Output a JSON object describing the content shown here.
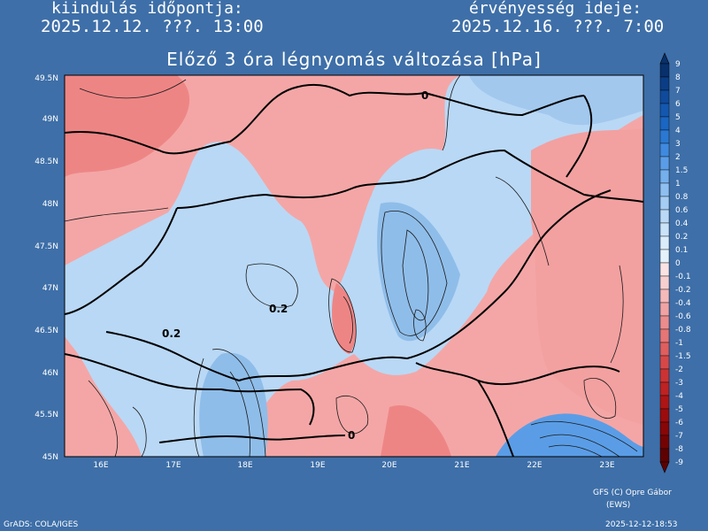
{
  "header": {
    "start_label": "kiindulás időpontja:",
    "start_value": "2025.12.12. ???. 13:00",
    "valid_label": "érvényesség ideje:",
    "valid_value": "2025.12.16. ???. 7:00"
  },
  "title": "Előző 3 óra légnyomás változása [hPa]",
  "map": {
    "lat_labels": [
      "49.5N",
      "49N",
      "48.5N",
      "48N",
      "47.5N",
      "47N",
      "46.5N",
      "46N",
      "45.5N",
      "45N"
    ],
    "lon_labels": [
      "16E",
      "17E",
      "18E",
      "19E",
      "20E",
      "21E",
      "22E",
      "23E"
    ],
    "contour_labels": [
      "0",
      "0.2",
      "0.2",
      "0"
    ]
  },
  "colorbar": {
    "levels": [
      "9",
      "8",
      "7",
      "6",
      "5",
      "4",
      "3",
      "2",
      "1.5",
      "1",
      "0.8",
      "0.6",
      "0.4",
      "0.2",
      "0.1",
      "0",
      "-0.1",
      "-0.2",
      "-0.4",
      "-0.6",
      "-0.8",
      "-1",
      "-1.5",
      "-2",
      "-3",
      "-4",
      "-5",
      "-6",
      "-7",
      "-8",
      "-9"
    ],
    "colors": [
      "#08306b",
      "#0b3d85",
      "#0f4a9c",
      "#1457b0",
      "#1a66c2",
      "#2a78d2",
      "#3f8ade",
      "#5a9de6",
      "#75afec",
      "#8fbff0",
      "#a6cdf3",
      "#bad9f6",
      "#cbe3f8",
      "#dbecfa",
      "#e6f2fb",
      "#fbe3e3",
      "#f8cfcf",
      "#f5b9b9",
      "#f1a3a3",
      "#ec8c8c",
      "#e67575",
      "#df5e5e",
      "#d64848",
      "#cb3333",
      "#be2222",
      "#ae1515",
      "#9c0c0c",
      "#880606",
      "#730303",
      "#5e0101"
    ]
  },
  "footer": {
    "credit_line1": "GFS (C) Opre Gábor",
    "credit_line2": "(EWS)",
    "grads": "GrADS: COLA/IGES",
    "timestamp": "2025-12-12-18:53"
  },
  "colors": {
    "background": "#3e6fa8",
    "positive_light": "#cfe3f7",
    "positive_mid": "#a9cdf2",
    "negative_light": "#f6b3b3",
    "negative_mid": "#ef8f8f"
  }
}
